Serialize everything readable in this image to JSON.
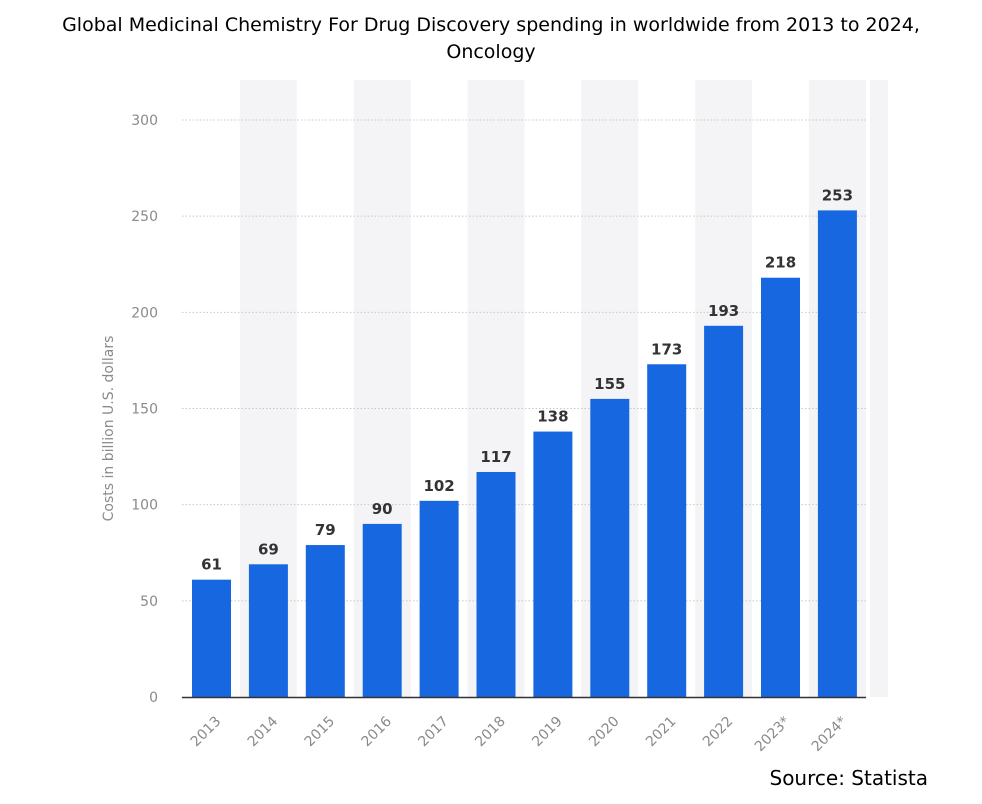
{
  "title_line1": "Global Medicinal Chemistry For Drug Discovery spending in worldwide from 2013 to 2024,",
  "title_line2": "Oncology",
  "source": "Source: Statista",
  "colors": {
    "bar": "#1767e0",
    "band": "#f4f4f6",
    "grid": "#c8c8c8",
    "axis_text": "#8a8a8a",
    "value_text": "#333333"
  },
  "chart_data": {
    "type": "bar",
    "title": "Global Medicinal Chemistry For Drug Discovery spending in worldwide from 2013 to 2024, Oncology",
    "xlabel": "",
    "ylabel": "Costs in billion U.S. dollars",
    "categories": [
      "2013",
      "2014",
      "2015",
      "2016",
      "2017",
      "2018",
      "2019",
      "2020",
      "2021",
      "2022",
      "2023*",
      "2024*"
    ],
    "values": [
      61,
      69,
      79,
      90,
      102,
      117,
      138,
      155,
      173,
      193,
      218,
      253
    ],
    "ylim": [
      0,
      300
    ],
    "yticks": [
      0,
      50,
      100,
      150,
      200,
      250,
      300
    ],
    "grid": true,
    "data_labels": true
  }
}
